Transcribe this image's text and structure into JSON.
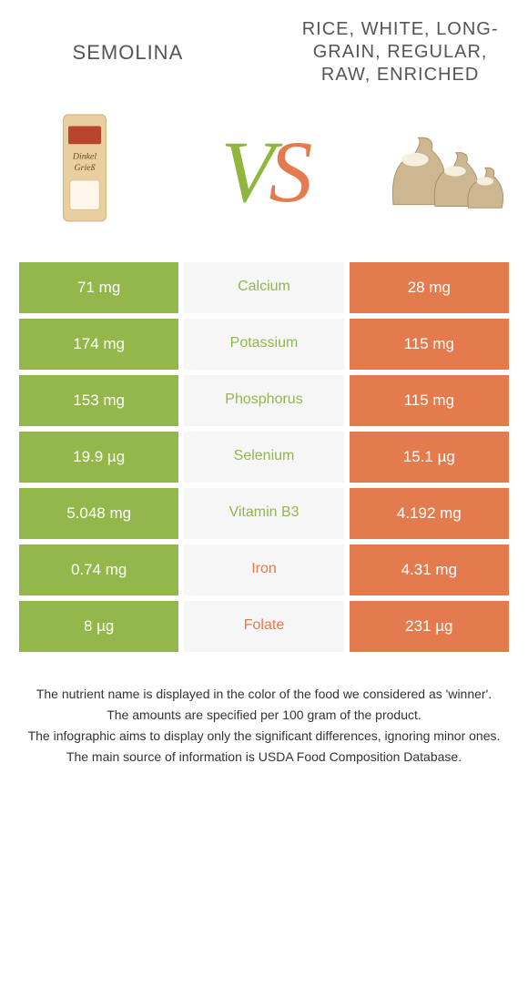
{
  "colors": {
    "left": "#93b74b",
    "right": "#e47b4e",
    "mid_bg": "#f6f6f6"
  },
  "left_food": {
    "title": "SEMOLINA"
  },
  "right_food": {
    "title": "RICE, WHITE, LONG-GRAIN, REGULAR, RAW, ENRICHED"
  },
  "vs": {
    "v": "V",
    "s": "S"
  },
  "rows": [
    {
      "nutrient": "Calcium",
      "left": "71 mg",
      "right": "28 mg",
      "winner": "left"
    },
    {
      "nutrient": "Potassium",
      "left": "174 mg",
      "right": "115 mg",
      "winner": "left"
    },
    {
      "nutrient": "Phosphorus",
      "left": "153 mg",
      "right": "115 mg",
      "winner": "left"
    },
    {
      "nutrient": "Selenium",
      "left": "19.9 µg",
      "right": "15.1 µg",
      "winner": "left"
    },
    {
      "nutrient": "Vitamin B3",
      "left": "5.048 mg",
      "right": "4.192 mg",
      "winner": "left"
    },
    {
      "nutrient": "Iron",
      "left": "0.74 mg",
      "right": "4.31 mg",
      "winner": "right"
    },
    {
      "nutrient": "Folate",
      "left": "8 µg",
      "right": "231 µg",
      "winner": "right"
    }
  ],
  "notes": [
    "The nutrient name is displayed in the color of the food we considered as 'winner'.",
    "The amounts are specified per 100 gram of the product.",
    "The infographic aims to display only the significant differences, ignoring minor ones.",
    "The main source of information is USDA Food Composition Database."
  ],
  "table_style": {
    "cell_font_size": 17,
    "mid_font_size": 16,
    "row_padding_v": 18,
    "border_width": 3,
    "border_color": "#ffffff"
  }
}
